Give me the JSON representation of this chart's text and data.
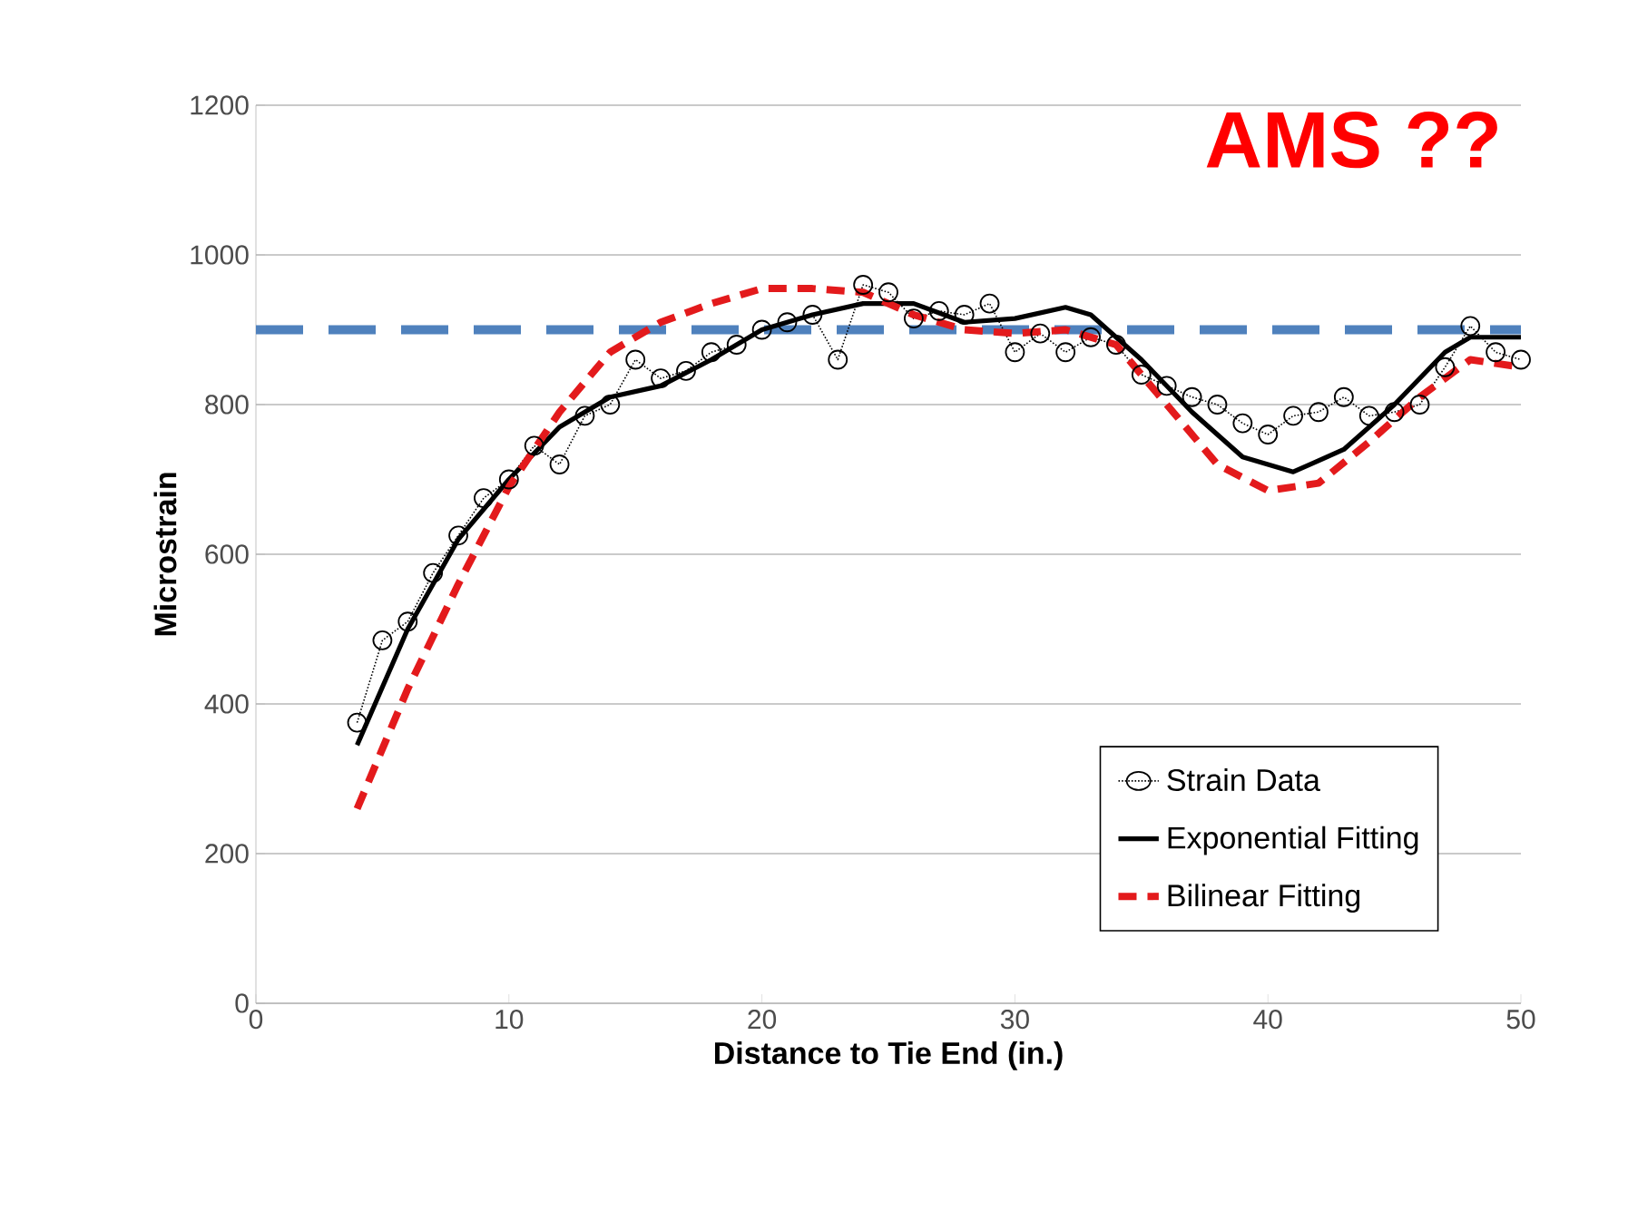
{
  "chart_data": {
    "type": "line",
    "xlabel": "Distance to Tie End (in.)",
    "ylabel": "Microstrain",
    "xlim": [
      0,
      50
    ],
    "xticks": [
      0,
      10,
      20,
      30,
      40,
      50
    ],
    "ylim": [
      0,
      1200
    ],
    "yticks": [
      0,
      200,
      400,
      600,
      800,
      1000,
      1200
    ],
    "grid": "y",
    "legend": "bottom right",
    "annotations": [
      "AMS ??"
    ],
    "ref_lines": [
      {
        "axis": "y",
        "value": 900,
        "color": "#4f81bd",
        "line_style": "dashed"
      }
    ],
    "series": [
      {
        "name": "Strain Data",
        "color": "#000000",
        "marker": "circle",
        "line_style": "dotted",
        "x": [
          4,
          5,
          6,
          7,
          8,
          9,
          10,
          11,
          12,
          13,
          14,
          15,
          16,
          17,
          18,
          19,
          20,
          21,
          22,
          23,
          24,
          25,
          26,
          27,
          28,
          29,
          30,
          31,
          32,
          33,
          34,
          35,
          36,
          37,
          38,
          39,
          40,
          41,
          42,
          43,
          44,
          45,
          46,
          47,
          48,
          49,
          50
        ],
        "values": [
          375,
          485,
          510,
          575,
          625,
          675,
          700,
          745,
          720,
          785,
          800,
          860,
          835,
          845,
          870,
          880,
          900,
          910,
          920,
          860,
          960,
          950,
          915,
          925,
          920,
          935,
          870,
          895,
          870,
          890,
          880,
          840,
          825,
          810,
          800,
          775,
          760,
          785,
          790,
          810,
          785,
          790,
          800,
          850,
          905,
          870,
          860
        ]
      },
      {
        "name": "Exponential Fitting",
        "color": "#000000",
        "marker": "none",
        "line_style": "solid",
        "x": [
          4,
          6,
          8,
          10,
          12,
          14,
          16,
          18,
          20,
          22,
          24,
          26,
          28,
          30,
          32,
          33,
          35,
          37,
          39,
          41,
          43,
          45,
          47,
          48,
          50
        ],
        "values": [
          345,
          500,
          620,
          700,
          770,
          810,
          825,
          860,
          900,
          920,
          935,
          935,
          910,
          915,
          930,
          920,
          860,
          790,
          730,
          710,
          740,
          800,
          870,
          890,
          890
        ]
      },
      {
        "name": "Bilinear Fitting",
        "color": "#e31a1c",
        "marker": "none",
        "line_style": "dashed",
        "x": [
          4,
          6,
          8,
          10,
          12,
          14,
          16,
          18,
          20,
          22,
          24,
          26,
          28,
          30,
          32,
          34,
          36,
          38,
          40,
          42,
          44,
          46,
          48,
          50
        ],
        "values": [
          260,
          420,
          560,
          690,
          790,
          870,
          910,
          935,
          955,
          955,
          950,
          920,
          900,
          895,
          900,
          880,
          800,
          720,
          685,
          695,
          750,
          810,
          860,
          850
        ]
      }
    ]
  }
}
